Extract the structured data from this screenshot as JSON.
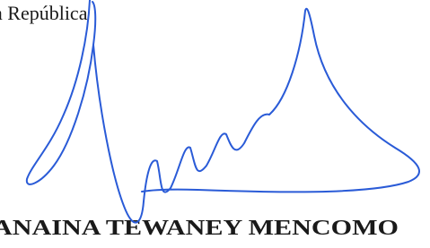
{
  "document": {
    "header_text": "a República",
    "signatory_name": "ANAINA TEWANEY MENCOMO"
  }
}
